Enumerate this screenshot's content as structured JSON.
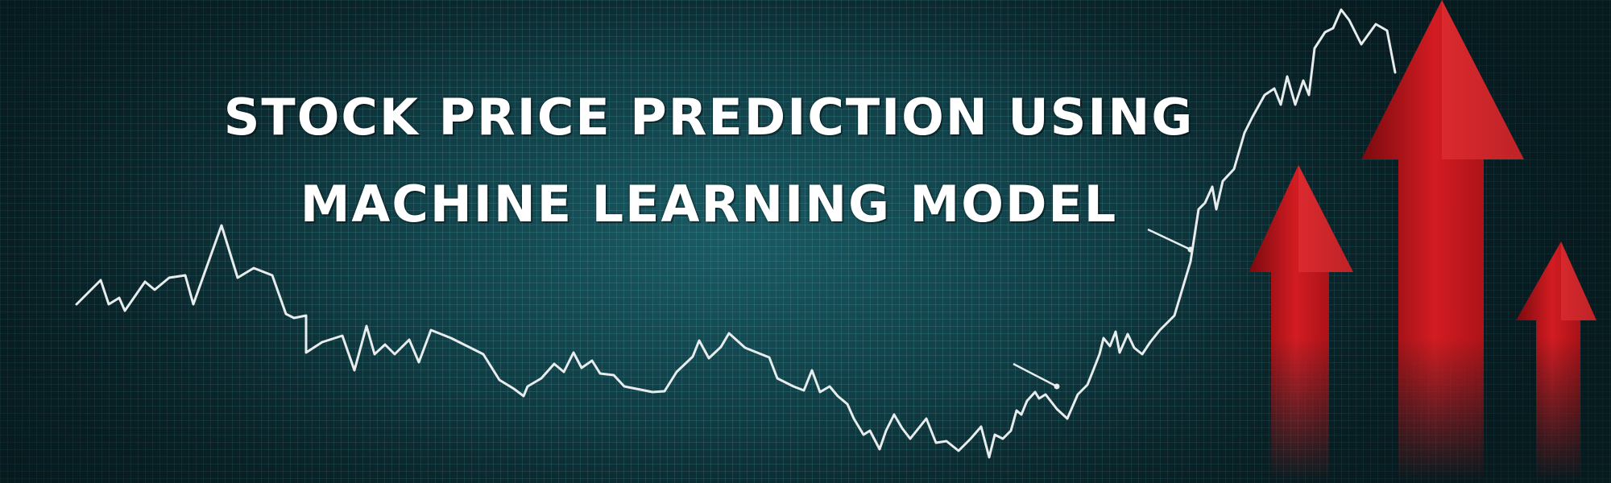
{
  "headline": {
    "line1": "STOCK PRICE PREDICTION USING",
    "line2": "MACHINE LEARNING MODEL"
  },
  "colors": {
    "background": "#0d2b31",
    "grid": "#5ac8d2",
    "trend_line": "#e8ecec",
    "arrow_red": "#c8161d",
    "text": "#ffffff"
  },
  "icons": [
    "stock-trend-line",
    "up-arrow-icon",
    "up-arrow-icon",
    "up-arrow-icon"
  ]
}
